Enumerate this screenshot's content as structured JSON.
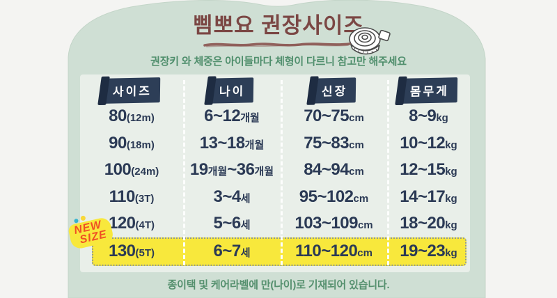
{
  "header": {
    "title": "삠뽀요 권장사이즈",
    "subtitle": "권장키 와 체중은 아이들마다 체형이 다르니 참고만 해주세요"
  },
  "table": {
    "columns": [
      "사이즈",
      "나이",
      "신장",
      "몸무게"
    ],
    "rows": [
      {
        "highlight": false,
        "cells": [
          [
            {
              "t": "80",
              "s": "b"
            },
            {
              "t": "(12m)",
              "s": "s"
            }
          ],
          [
            {
              "t": "6~12",
              "s": "b"
            },
            {
              "t": "개월",
              "s": "s"
            }
          ],
          [
            {
              "t": "70~75",
              "s": "b"
            },
            {
              "t": "cm",
              "s": "s"
            }
          ],
          [
            {
              "t": "8~9",
              "s": "b"
            },
            {
              "t": "kg",
              "s": "s"
            }
          ]
        ]
      },
      {
        "highlight": false,
        "cells": [
          [
            {
              "t": "90",
              "s": "b"
            },
            {
              "t": "(18m)",
              "s": "s"
            }
          ],
          [
            {
              "t": "13~18",
              "s": "b"
            },
            {
              "t": "개월",
              "s": "s"
            }
          ],
          [
            {
              "t": "75~83",
              "s": "b"
            },
            {
              "t": "cm",
              "s": "s"
            }
          ],
          [
            {
              "t": "10~12",
              "s": "b"
            },
            {
              "t": "kg",
              "s": "s"
            }
          ]
        ]
      },
      {
        "highlight": false,
        "cells": [
          [
            {
              "t": "100",
              "s": "b"
            },
            {
              "t": "(24m)",
              "s": "s"
            }
          ],
          [
            {
              "t": "19",
              "s": "b"
            },
            {
              "t": "개월",
              "s": "s"
            },
            {
              "t": "~36",
              "s": "b"
            },
            {
              "t": "개월",
              "s": "s"
            }
          ],
          [
            {
              "t": "84~94",
              "s": "b"
            },
            {
              "t": "cm",
              "s": "s"
            }
          ],
          [
            {
              "t": "12~15",
              "s": "b"
            },
            {
              "t": "kg",
              "s": "s"
            }
          ]
        ]
      },
      {
        "highlight": false,
        "cells": [
          [
            {
              "t": "110",
              "s": "b"
            },
            {
              "t": "(3T)",
              "s": "s"
            }
          ],
          [
            {
              "t": "3~4",
              "s": "b"
            },
            {
              "t": "세",
              "s": "s"
            }
          ],
          [
            {
              "t": "95~102",
              "s": "b"
            },
            {
              "t": "cm",
              "s": "s"
            }
          ],
          [
            {
              "t": "14~17",
              "s": "b"
            },
            {
              "t": "kg",
              "s": "s"
            }
          ]
        ]
      },
      {
        "highlight": false,
        "cells": [
          [
            {
              "t": "120",
              "s": "b"
            },
            {
              "t": "(4T)",
              "s": "s"
            }
          ],
          [
            {
              "t": "5~6",
              "s": "b"
            },
            {
              "t": "세",
              "s": "s"
            }
          ],
          [
            {
              "t": "103~109",
              "s": "b"
            },
            {
              "t": "cm",
              "s": "s"
            }
          ],
          [
            {
              "t": "18~20",
              "s": "b"
            },
            {
              "t": "kg",
              "s": "s"
            }
          ]
        ]
      },
      {
        "highlight": true,
        "cells": [
          [
            {
              "t": "130",
              "s": "b"
            },
            {
              "t": "(5T)",
              "s": "s"
            }
          ],
          [
            {
              "t": "6~7",
              "s": "b"
            },
            {
              "t": "세",
              "s": "s"
            }
          ],
          [
            {
              "t": "110~120",
              "s": "b"
            },
            {
              "t": "cm",
              "s": "s"
            }
          ],
          [
            {
              "t": "19~23",
              "s": "b"
            },
            {
              "t": "kg",
              "s": "s"
            }
          ]
        ]
      }
    ]
  },
  "badge": {
    "line1": "NEW",
    "line2": "SIZE"
  },
  "footer": {
    "note": "종이택 및 케어라벨에 만(나이)로 기재되어 있습니다."
  },
  "icons": {
    "tape": "tape-measure-icon"
  },
  "colors": {
    "background": "#f4f4f2",
    "card": "#cfdfd4",
    "panel": "#e9efe9",
    "navy_text": "#2b3a55",
    "chip": "#2d3e57",
    "chip_fold": "#1e2c42",
    "title_maroon": "#7b4744",
    "green_text": "#4f8e6c",
    "highlight_yellow": "#f8e83c",
    "badge_orange": "#f04f24"
  },
  "chart_data": {
    "type": "table",
    "title": "삠뽀요 권장사이즈",
    "columns": [
      "사이즈",
      "나이",
      "신장",
      "몸무게"
    ],
    "rows": [
      [
        "80(12m)",
        "6~12개월",
        "70~75cm",
        "8~9kg"
      ],
      [
        "90(18m)",
        "13~18개월",
        "75~83cm",
        "10~12kg"
      ],
      [
        "100(24m)",
        "19개월~36개월",
        "84~94cm",
        "12~15kg"
      ],
      [
        "110(3T)",
        "3~4세",
        "95~102cm",
        "14~17kg"
      ],
      [
        "120(4T)",
        "5~6세",
        "103~109cm",
        "18~20kg"
      ],
      [
        "130(5T)",
        "6~7세",
        "110~120cm",
        "19~23kg"
      ]
    ],
    "highlighted_row_index": 5,
    "highlighted_row_label": "NEW SIZE",
    "notes": [
      "권장키 와 체중은 아이들마다 체형이 다르니 참고만 해주세요",
      "종이택 및 케어라벨에 만(나이)로 기재되어 있습니다."
    ]
  }
}
